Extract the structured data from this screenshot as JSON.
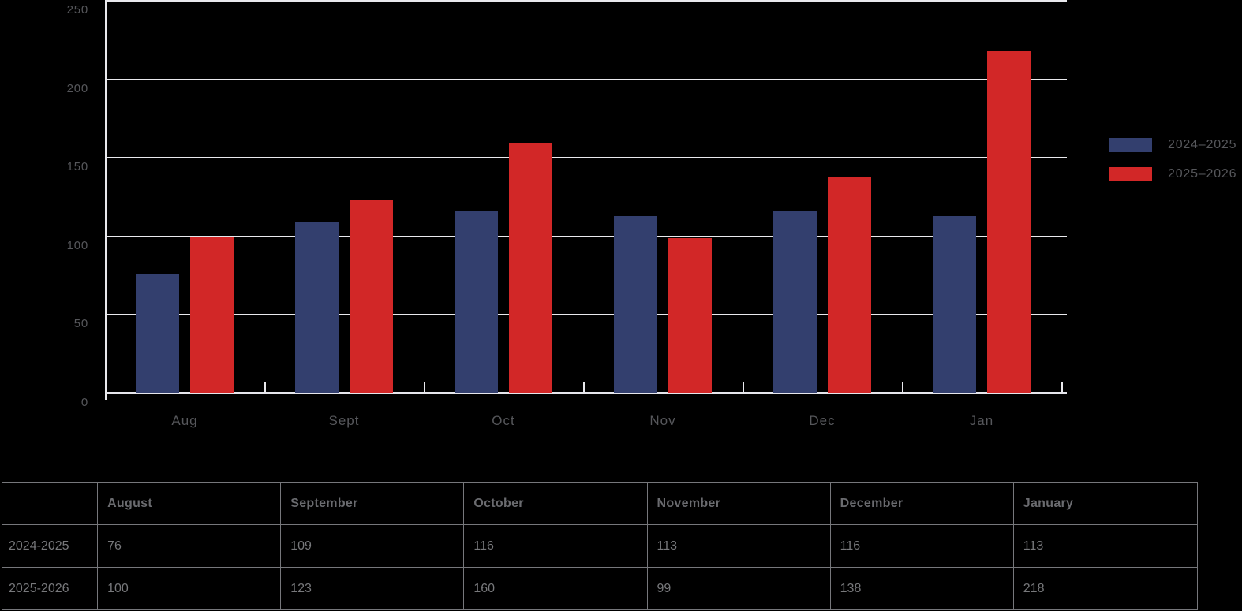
{
  "chart_data": {
    "type": "bar",
    "categories": [
      "Aug",
      "Sept",
      "Oct",
      "Nov",
      "Dec",
      "Jan"
    ],
    "series": [
      {
        "name": "2024–2025",
        "color": "#333F6E",
        "values": [
          76,
          109,
          116,
          113,
          116,
          113
        ]
      },
      {
        "name": "2025–2026",
        "color": "#D22727",
        "values": [
          100,
          123,
          160,
          99,
          138,
          218
        ]
      }
    ],
    "title": "",
    "xlabel": "",
    "ylabel": "",
    "ylim": [
      0,
      250
    ],
    "yticks": [
      0,
      50,
      100,
      150,
      200,
      250
    ],
    "grid": true,
    "legend_position": "right"
  },
  "table": {
    "columns": [
      "",
      "August",
      "September",
      "October",
      "November",
      "December",
      "January"
    ],
    "rows": [
      {
        "label": "2024-2025",
        "values": [
          76,
          109,
          116,
          113,
          116,
          113
        ]
      },
      {
        "label": "2025-2026",
        "values": [
          100,
          123,
          160,
          99,
          138,
          218
        ]
      }
    ]
  },
  "colors": {
    "background": "#000000",
    "grid": "#E9E9ED",
    "axis_text": "#56575B",
    "legend_text": "#56575B",
    "table_text": "#77787B",
    "table_header_text": "#6A6B6F",
    "table_border": "#76777B",
    "series_blue": "#333F6E",
    "series_red": "#D22727"
  }
}
